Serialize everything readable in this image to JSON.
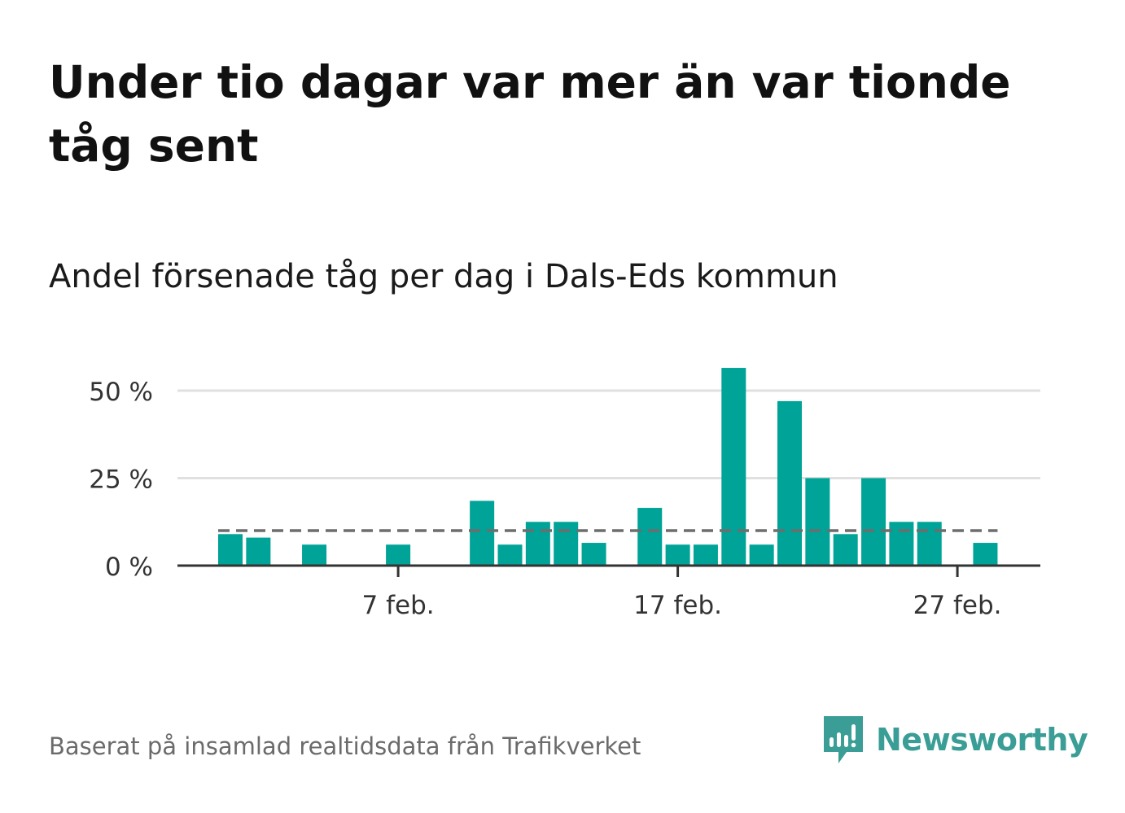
{
  "title": "Under tio dagar var mer än var tionde tåg sent",
  "subtitle": "Andel försenade tåg per dag i Dals-Eds kommun",
  "footer": "Baserat på insamlad realtidsdata från Trafikverket",
  "brand": {
    "name": "Newsworthy",
    "icon": "newsworthy-logo-icon",
    "color": "#3a9e96"
  },
  "colors": {
    "bar": "#00a397",
    "grid": "#e0e0e0",
    "axis": "#333333",
    "reference": "#6d6d6d"
  },
  "chart_data": {
    "type": "bar",
    "x": [
      "1 feb.",
      "2 feb.",
      "3 feb.",
      "4 feb.",
      "5 feb.",
      "6 feb.",
      "7 feb.",
      "8 feb.",
      "9 feb.",
      "10 feb.",
      "11 feb.",
      "12 feb.",
      "13 feb.",
      "14 feb.",
      "15 feb.",
      "16 feb.",
      "17 feb.",
      "18 feb.",
      "19 feb.",
      "20 feb.",
      "21 feb.",
      "22 feb.",
      "23 feb.",
      "24 feb.",
      "25 feb.",
      "26 feb.",
      "27 feb.",
      "28 feb."
    ],
    "values": [
      9,
      8,
      0,
      6,
      0,
      0,
      6,
      0,
      0,
      18.5,
      6,
      12.5,
      12.5,
      6.5,
      0,
      16.5,
      6,
      6,
      56.5,
      6,
      47,
      25,
      9,
      25,
      12.5,
      12.5,
      0,
      6.5
    ],
    "xticks": [
      "7 feb.",
      "17 feb.",
      "27 feb."
    ],
    "yticks": [
      0,
      25,
      50
    ],
    "ytick_labels": [
      "0 %",
      "25 %",
      "50 %"
    ],
    "ylim": [
      0,
      60
    ],
    "reference_line": 10,
    "grid": true,
    "legend": "none"
  }
}
